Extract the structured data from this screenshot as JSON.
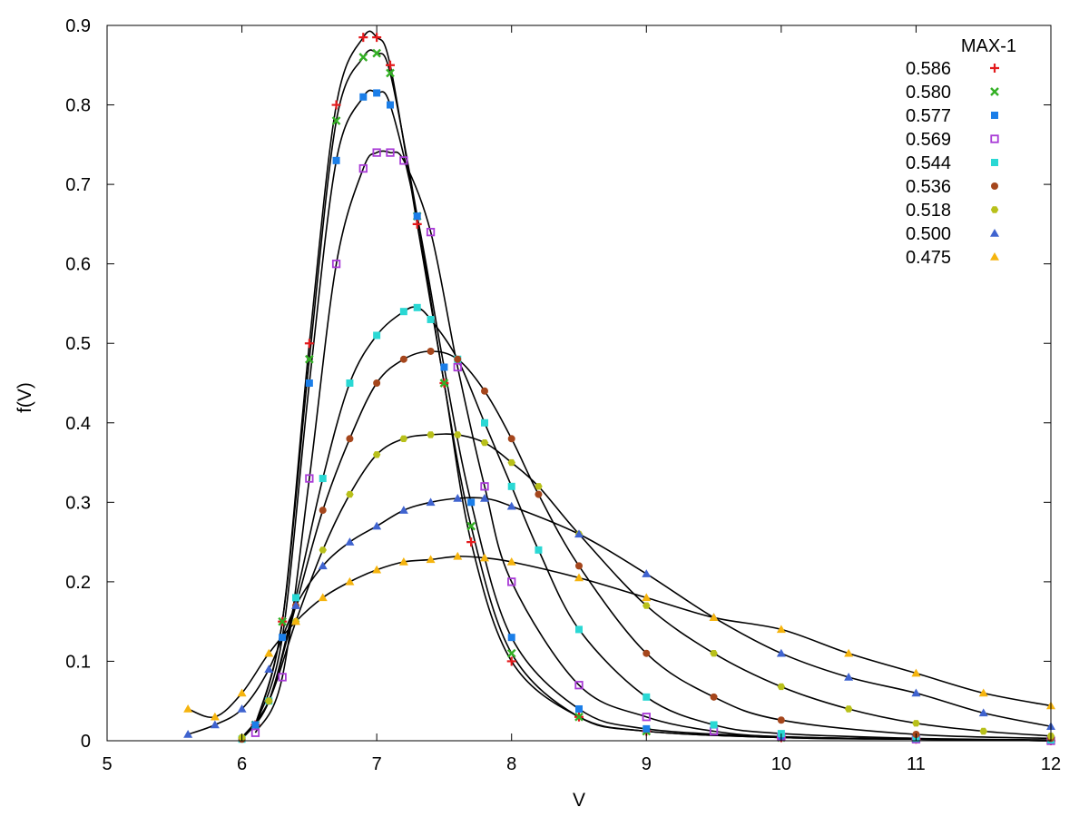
{
  "chart_data": {
    "type": "scatter",
    "title": "",
    "xlabel": "V",
    "ylabel": "f(V)",
    "xlim": [
      5,
      12
    ],
    "ylim": [
      0,
      0.9
    ],
    "xticks": [
      5,
      6,
      7,
      8,
      9,
      10,
      11,
      12
    ],
    "xtick_labels": [
      "5",
      "6",
      "7",
      "8",
      "9",
      "10",
      "11",
      "12"
    ],
    "yticks": [
      0,
      0.1,
      0.2,
      0.3,
      0.4,
      0.5,
      0.6,
      0.7,
      0.8,
      0.9
    ],
    "ytick_labels": [
      "0",
      "0.1",
      "0.2",
      "0.3",
      "0.4",
      "0.5",
      "0.6",
      "0.7",
      "0.8",
      "0.9"
    ],
    "grid": false,
    "legend_title": "MAX-1",
    "legend_position": "top-right",
    "fit_line_color": "#000000",
    "series": [
      {
        "name": "0.586",
        "marker": "plus",
        "color": "#e31a1c",
        "x": [
          6.1,
          6.3,
          6.5,
          6.7,
          6.9,
          7.0,
          7.1,
          7.3,
          7.5,
          7.7,
          8.0,
          8.5,
          9.0,
          10.0,
          11.0,
          12.0
        ],
        "y": [
          0.02,
          0.15,
          0.5,
          0.8,
          0.885,
          0.885,
          0.85,
          0.65,
          0.45,
          0.25,
          0.1,
          0.03,
          0.012,
          0.004,
          0.002,
          0.0
        ]
      },
      {
        "name": "0.580",
        "marker": "cross",
        "color": "#33b024",
        "x": [
          6.1,
          6.3,
          6.5,
          6.7,
          6.9,
          7.0,
          7.1,
          7.3,
          7.5,
          7.7,
          8.0,
          8.5,
          9.0,
          10.0,
          11.0,
          12.0
        ],
        "y": [
          0.02,
          0.15,
          0.48,
          0.78,
          0.86,
          0.865,
          0.84,
          0.66,
          0.45,
          0.27,
          0.11,
          0.03,
          0.012,
          0.004,
          0.002,
          0.0
        ]
      },
      {
        "name": "0.577",
        "marker": "square",
        "color": "#1b7ee8",
        "x": [
          6.1,
          6.3,
          6.5,
          6.7,
          6.9,
          7.0,
          7.1,
          7.3,
          7.5,
          7.7,
          8.0,
          8.5,
          9.0,
          10.0,
          11.0,
          12.0
        ],
        "y": [
          0.02,
          0.13,
          0.45,
          0.73,
          0.81,
          0.815,
          0.8,
          0.66,
          0.47,
          0.3,
          0.13,
          0.04,
          0.015,
          0.005,
          0.002,
          0.0
        ]
      },
      {
        "name": "0.569",
        "marker": "square-open",
        "color": "#a83ad6",
        "x": [
          6.1,
          6.3,
          6.5,
          6.7,
          6.9,
          7.0,
          7.1,
          7.2,
          7.4,
          7.6,
          7.8,
          8.0,
          8.5,
          9.0,
          9.5,
          10.0,
          11.0,
          12.0
        ],
        "y": [
          0.01,
          0.08,
          0.33,
          0.6,
          0.72,
          0.74,
          0.74,
          0.73,
          0.64,
          0.47,
          0.32,
          0.2,
          0.07,
          0.03,
          0.012,
          0.005,
          0.002,
          0.0
        ]
      },
      {
        "name": "0.544",
        "marker": "square",
        "color": "#2ad8d4",
        "x": [
          6.0,
          6.2,
          6.4,
          6.6,
          6.8,
          7.0,
          7.2,
          7.3,
          7.4,
          7.6,
          7.8,
          8.0,
          8.2,
          8.5,
          9.0,
          9.5,
          10.0,
          11.0,
          12.0
        ],
        "y": [
          0.002,
          0.05,
          0.18,
          0.33,
          0.45,
          0.51,
          0.54,
          0.545,
          0.53,
          0.48,
          0.4,
          0.32,
          0.24,
          0.14,
          0.055,
          0.02,
          0.009,
          0.003,
          0.001
        ]
      },
      {
        "name": "0.536",
        "marker": "circle",
        "color": "#a5461c",
        "x": [
          6.0,
          6.2,
          6.4,
          6.6,
          6.8,
          7.0,
          7.2,
          7.4,
          7.6,
          7.8,
          8.0,
          8.2,
          8.5,
          9.0,
          9.5,
          10.0,
          11.0,
          12.0
        ],
        "y": [
          0.002,
          0.05,
          0.17,
          0.29,
          0.38,
          0.45,
          0.48,
          0.49,
          0.48,
          0.44,
          0.38,
          0.31,
          0.22,
          0.11,
          0.055,
          0.026,
          0.008,
          0.003
        ]
      },
      {
        "name": "0.518",
        "marker": "hexagon",
        "color": "#b8c01a",
        "x": [
          6.0,
          6.2,
          6.4,
          6.6,
          6.8,
          7.0,
          7.2,
          7.4,
          7.6,
          7.8,
          8.0,
          8.2,
          8.5,
          9.0,
          9.5,
          10.0,
          10.5,
          11.0,
          11.5,
          12.0
        ],
        "y": [
          0.004,
          0.05,
          0.15,
          0.24,
          0.31,
          0.36,
          0.38,
          0.385,
          0.385,
          0.375,
          0.35,
          0.32,
          0.26,
          0.17,
          0.11,
          0.068,
          0.04,
          0.022,
          0.012,
          0.006
        ]
      },
      {
        "name": "0.500",
        "marker": "triangle",
        "color": "#3f63cf",
        "x": [
          5.6,
          5.8,
          6.0,
          6.2,
          6.4,
          6.6,
          6.8,
          7.0,
          7.2,
          7.4,
          7.6,
          7.8,
          8.0,
          8.5,
          9.0,
          9.5,
          10.0,
          10.5,
          11.0,
          11.5,
          12.0
        ],
        "y": [
          0.008,
          0.02,
          0.04,
          0.09,
          0.17,
          0.22,
          0.25,
          0.27,
          0.29,
          0.3,
          0.305,
          0.305,
          0.295,
          0.26,
          0.21,
          0.155,
          0.11,
          0.08,
          0.06,
          0.035,
          0.018
        ]
      },
      {
        "name": "0.475",
        "marker": "triangle",
        "color": "#f5b40e",
        "x": [
          5.6,
          5.8,
          6.0,
          6.2,
          6.4,
          6.6,
          6.8,
          7.0,
          7.2,
          7.4,
          7.6,
          7.8,
          8.0,
          8.5,
          9.0,
          9.5,
          10.0,
          10.5,
          11.0,
          11.5,
          12.0
        ],
        "y": [
          0.04,
          0.03,
          0.06,
          0.11,
          0.15,
          0.18,
          0.2,
          0.215,
          0.225,
          0.228,
          0.232,
          0.23,
          0.225,
          0.205,
          0.18,
          0.155,
          0.14,
          0.11,
          0.085,
          0.06,
          0.044
        ]
      }
    ]
  }
}
